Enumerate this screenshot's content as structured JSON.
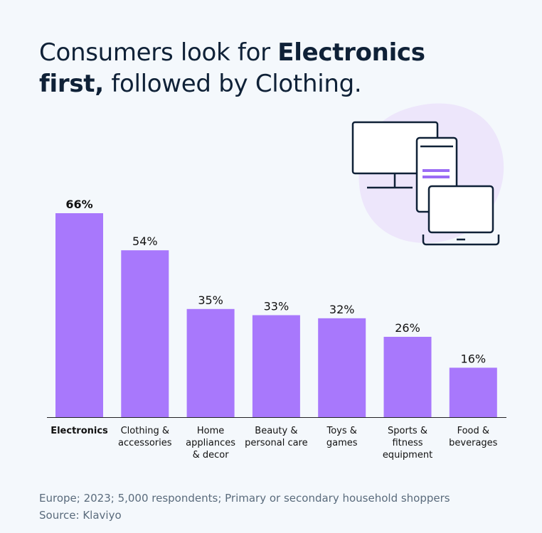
{
  "title": {
    "part1": "Consumers look for ",
    "bold1": "Electronics",
    "bold2": "first,",
    "part2": " followed by Clothing."
  },
  "chart_data": {
    "type": "bar",
    "categories": [
      [
        "Electronics"
      ],
      [
        "Clothing &",
        "accessories"
      ],
      [
        "Home",
        "appliances",
        "& decor"
      ],
      [
        "Beauty &",
        "personal care"
      ],
      [
        "Toys &",
        "games"
      ],
      [
        "Sports &",
        "fitness",
        "equipment"
      ],
      [
        "Food &",
        "beverages"
      ]
    ],
    "values": [
      66,
      54,
      35,
      33,
      32,
      26,
      16
    ],
    "labels": [
      "66%",
      "54%",
      "35%",
      "33%",
      "32%",
      "26%",
      "16%"
    ],
    "highlight_index": 0,
    "bar_color": "#a878fc",
    "ylim": [
      0,
      70
    ],
    "grid": false
  },
  "footer": {
    "note": "Europe; 2023; 5,000 respondents; Primary or secondary household shoppers",
    "source": "Source: Klaviyo"
  },
  "illustration": {
    "icon": "devices-icon",
    "accent": "#9b6cf5",
    "blob": "#ede6fb"
  }
}
